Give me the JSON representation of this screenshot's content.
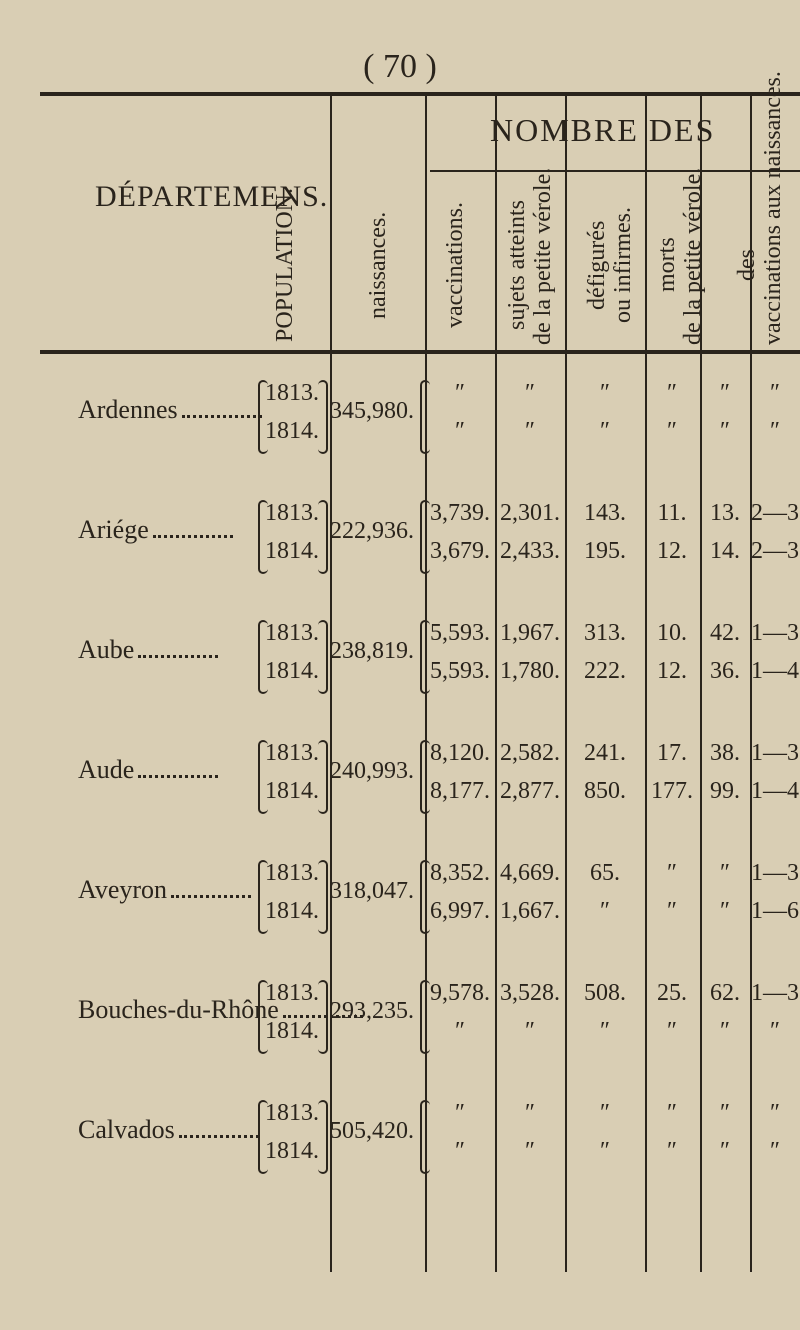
{
  "page_number": "( 70 )",
  "header": {
    "group": "NOMBRE DES",
    "columns": {
      "departments": [
        "DÉPARTEMENS."
      ],
      "population": [
        "POPULATION."
      ],
      "births": [
        "naissances."
      ],
      "vaccinations": [
        "vaccinations."
      ],
      "affected": [
        "sujets atteints",
        "de la petite vérole."
      ],
      "disfigured": [
        "défigurés",
        "ou infirmes."
      ],
      "deaths": [
        "morts",
        "de la petite vérole."
      ],
      "ratio": [
        "des",
        "vaccinations aux naissances."
      ]
    }
  },
  "table": {
    "years": [
      "1813.",
      "1814."
    ],
    "rows": [
      {
        "department": "Ardennes",
        "population": "345,980.",
        "cells": [
          [
            "″",
            "″"
          ],
          [
            "″",
            "″"
          ],
          [
            "″",
            "″"
          ],
          [
            "″",
            "″"
          ],
          [
            "″",
            "″"
          ],
          [
            "″",
            "″"
          ]
        ]
      },
      {
        "department": "Ariége",
        "population": "222,936.",
        "cells": [
          [
            "3,739.",
            "3,679."
          ],
          [
            "2,301.",
            "2,433."
          ],
          [
            "143.",
            "195."
          ],
          [
            "11.",
            "12."
          ],
          [
            "13.",
            "14."
          ],
          [
            "2—3",
            "2—3"
          ]
        ]
      },
      {
        "department": "Aube",
        "population": "238,819.",
        "cells": [
          [
            "5,593.",
            "5,593."
          ],
          [
            "1,967.",
            "1,780."
          ],
          [
            "313.",
            "222."
          ],
          [
            "10.",
            "12."
          ],
          [
            "42.",
            "36."
          ],
          [
            "1—3",
            "1—4"
          ]
        ]
      },
      {
        "department": "Aude",
        "population": "240,993.",
        "cells": [
          [
            "8,120.",
            "8,177."
          ],
          [
            "2,582.",
            "2,877."
          ],
          [
            "241.",
            "850."
          ],
          [
            "17.",
            "177."
          ],
          [
            "38.",
            "99."
          ],
          [
            "1—3",
            "1—4"
          ]
        ]
      },
      {
        "department": "Aveyron",
        "population": "318,047.",
        "cells": [
          [
            "8,352.",
            "6,997."
          ],
          [
            "4,669.",
            "1,667."
          ],
          [
            "65.",
            "″"
          ],
          [
            "″",
            "″"
          ],
          [
            "″",
            "″"
          ],
          [
            "1—3",
            "1—6"
          ]
        ]
      },
      {
        "department": "Bouches-du-Rhône",
        "population": "293,235.",
        "cells": [
          [
            "9,578.",
            "″"
          ],
          [
            "3,528.",
            "″"
          ],
          [
            "508.",
            "″"
          ],
          [
            "25.",
            "″"
          ],
          [
            "62.",
            "″"
          ],
          [
            "1—3",
            "″"
          ]
        ]
      },
      {
        "department": "Calvados",
        "population": "505,420.",
        "cells": [
          [
            "″",
            "″"
          ],
          [
            "″",
            "″"
          ],
          [
            "″",
            "″"
          ],
          [
            "″",
            "″"
          ],
          [
            "″",
            "″"
          ],
          [
            "″",
            "″"
          ]
        ]
      }
    ]
  }
}
